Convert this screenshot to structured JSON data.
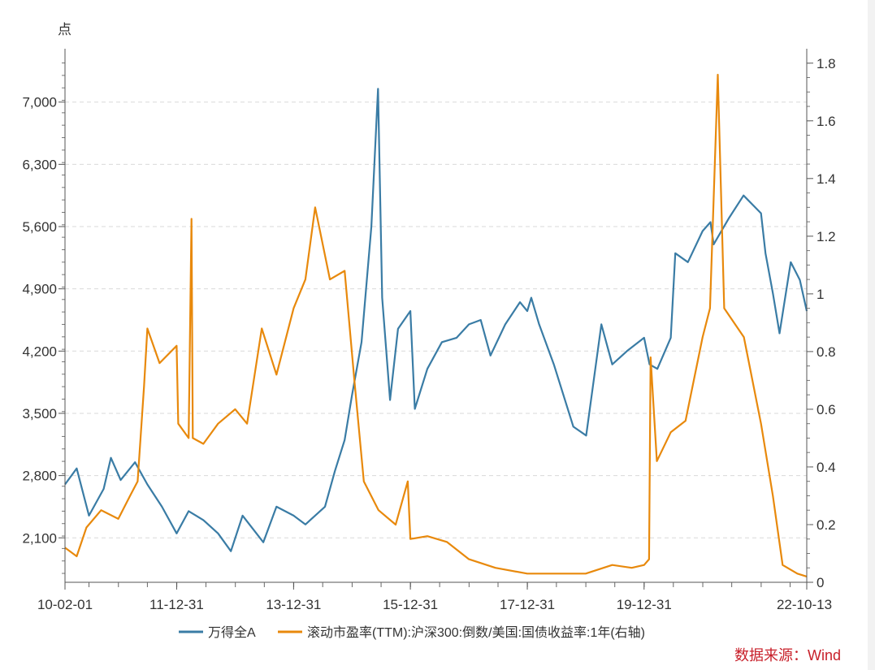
{
  "chart_data": {
    "type": "line",
    "left_unit": "点",
    "x_ticks": [
      "10-02-01",
      "11-12-31",
      "13-12-31",
      "15-12-31",
      "17-12-31",
      "19-12-31",
      "22-10-13"
    ],
    "x_range": [
      "2010-02-01",
      "2022-10-13"
    ],
    "y_left": {
      "ticks": [
        "2,100",
        "2,800",
        "3,500",
        "4,200",
        "4,900",
        "5,600",
        "6,300",
        "7,000"
      ],
      "range": [
        1600,
        7600
      ]
    },
    "y_right": {
      "ticks": [
        "0",
        "0.2",
        "0.4",
        "0.6",
        "0.8",
        "1",
        "1.2",
        "1.4",
        "1.6",
        "1.8"
      ],
      "range": [
        0,
        1.85
      ]
    },
    "grid": true,
    "legend_position": "bottom",
    "series": [
      {
        "name": "万得全A",
        "axis": "left",
        "color": "#3a7ca5",
        "points": [
          [
            "2010-02-01",
            2700
          ],
          [
            "2010-04-15",
            2880
          ],
          [
            "2010-07-01",
            2350
          ],
          [
            "2010-10-01",
            2650
          ],
          [
            "2010-11-15",
            3000
          ],
          [
            "2011-01-15",
            2750
          ],
          [
            "2011-04-15",
            2950
          ],
          [
            "2011-07-01",
            2700
          ],
          [
            "2011-09-30",
            2450
          ],
          [
            "2011-12-31",
            2150
          ],
          [
            "2012-03-15",
            2400
          ],
          [
            "2012-06-15",
            2300
          ],
          [
            "2012-09-15",
            2150
          ],
          [
            "2012-12-04",
            1950
          ],
          [
            "2013-02-15",
            2350
          ],
          [
            "2013-06-25",
            2050
          ],
          [
            "2013-09-15",
            2450
          ],
          [
            "2013-12-31",
            2350
          ],
          [
            "2014-03-15",
            2250
          ],
          [
            "2014-07-15",
            2450
          ],
          [
            "2014-09-15",
            2850
          ],
          [
            "2014-11-15",
            3200
          ],
          [
            "2014-12-31",
            3700
          ],
          [
            "2015-03-01",
            4300
          ],
          [
            "2015-05-01",
            5600
          ],
          [
            "2015-06-12",
            7150
          ],
          [
            "2015-07-08",
            4800
          ],
          [
            "2015-08-26",
            3650
          ],
          [
            "2015-10-15",
            4450
          ],
          [
            "2015-12-31",
            4650
          ],
          [
            "2016-01-28",
            3550
          ],
          [
            "2016-04-15",
            4000
          ],
          [
            "2016-07-15",
            4300
          ],
          [
            "2016-10-15",
            4350
          ],
          [
            "2016-12-31",
            4500
          ],
          [
            "2017-03-15",
            4550
          ],
          [
            "2017-05-15",
            4150
          ],
          [
            "2017-08-15",
            4500
          ],
          [
            "2017-11-15",
            4750
          ],
          [
            "2017-12-31",
            4650
          ],
          [
            "2018-01-25",
            4800
          ],
          [
            "2018-03-15",
            4500
          ],
          [
            "2018-06-15",
            4050
          ],
          [
            "2018-08-15",
            3700
          ],
          [
            "2018-10-15",
            3350
          ],
          [
            "2019-01-03",
            3250
          ],
          [
            "2019-04-08",
            4500
          ],
          [
            "2019-06-15",
            4050
          ],
          [
            "2019-09-15",
            4200
          ],
          [
            "2019-12-31",
            4350
          ],
          [
            "2020-02-03",
            4050
          ],
          [
            "2020-03-23",
            4000
          ],
          [
            "2020-06-15",
            4350
          ],
          [
            "2020-07-13",
            5300
          ],
          [
            "2020-09-30",
            5200
          ],
          [
            "2020-12-31",
            5550
          ],
          [
            "2021-02-18",
            5650
          ],
          [
            "2021-03-10",
            5400
          ],
          [
            "2021-06-15",
            5700
          ],
          [
            "2021-09-13",
            5950
          ],
          [
            "2021-12-31",
            5750
          ],
          [
            "2022-01-28",
            5300
          ],
          [
            "2022-03-15",
            4850
          ],
          [
            "2022-04-26",
            4400
          ],
          [
            "2022-07-05",
            5200
          ],
          [
            "2022-08-31",
            5000
          ],
          [
            "2022-10-13",
            4650
          ]
        ]
      },
      {
        "name": "滚动市盈率(TTM):沪深300:倒数/美国:国债收益率:1年(右轴)",
        "axis": "right",
        "color": "#e8890c",
        "points": [
          [
            "2010-02-01",
            0.12
          ],
          [
            "2010-04-15",
            0.09
          ],
          [
            "2010-06-15",
            0.19
          ],
          [
            "2010-09-15",
            0.25
          ],
          [
            "2010-12-31",
            0.22
          ],
          [
            "2011-03-15",
            0.3
          ],
          [
            "2011-05-01",
            0.35
          ],
          [
            "2011-06-10",
            0.68
          ],
          [
            "2011-07-01",
            0.88
          ],
          [
            "2011-09-15",
            0.76
          ],
          [
            "2011-12-31",
            0.82
          ],
          [
            "2012-01-10",
            0.55
          ],
          [
            "2012-03-15",
            0.5
          ],
          [
            "2012-04-02",
            1.26
          ],
          [
            "2012-04-10",
            0.5
          ],
          [
            "2012-06-15",
            0.48
          ],
          [
            "2012-09-15",
            0.55
          ],
          [
            "2012-12-31",
            0.6
          ],
          [
            "2013-03-15",
            0.55
          ],
          [
            "2013-06-15",
            0.88
          ],
          [
            "2013-09-15",
            0.72
          ],
          [
            "2013-12-31",
            0.95
          ],
          [
            "2014-03-15",
            1.05
          ],
          [
            "2014-05-15",
            1.3
          ],
          [
            "2014-08-15",
            1.05
          ],
          [
            "2014-11-15",
            1.08
          ],
          [
            "2015-01-15",
            0.7
          ],
          [
            "2015-03-15",
            0.35
          ],
          [
            "2015-06-15",
            0.25
          ],
          [
            "2015-09-30",
            0.2
          ],
          [
            "2015-12-15",
            0.35
          ],
          [
            "2015-12-31",
            0.15
          ],
          [
            "2016-04-15",
            0.16
          ],
          [
            "2016-08-15",
            0.14
          ],
          [
            "2016-12-31",
            0.08
          ],
          [
            "2017-06-15",
            0.05
          ],
          [
            "2017-12-31",
            0.03
          ],
          [
            "2018-06-15",
            0.03
          ],
          [
            "2018-12-31",
            0.03
          ],
          [
            "2019-06-15",
            0.06
          ],
          [
            "2019-10-15",
            0.05
          ],
          [
            "2019-12-31",
            0.06
          ],
          [
            "2020-01-31",
            0.08
          ],
          [
            "2020-02-10",
            0.78
          ],
          [
            "2020-03-20",
            0.42
          ],
          [
            "2020-06-15",
            0.52
          ],
          [
            "2020-09-15",
            0.56
          ],
          [
            "2020-12-31",
            0.85
          ],
          [
            "2021-02-15",
            0.95
          ],
          [
            "2021-04-05",
            1.76
          ],
          [
            "2021-05-15",
            0.95
          ],
          [
            "2021-09-15",
            0.85
          ],
          [
            "2021-12-31",
            0.55
          ],
          [
            "2022-03-15",
            0.3
          ],
          [
            "2022-05-15",
            0.06
          ],
          [
            "2022-08-15",
            0.03
          ],
          [
            "2022-10-13",
            0.02
          ]
        ]
      }
    ]
  },
  "source": "数据来源：Wind"
}
